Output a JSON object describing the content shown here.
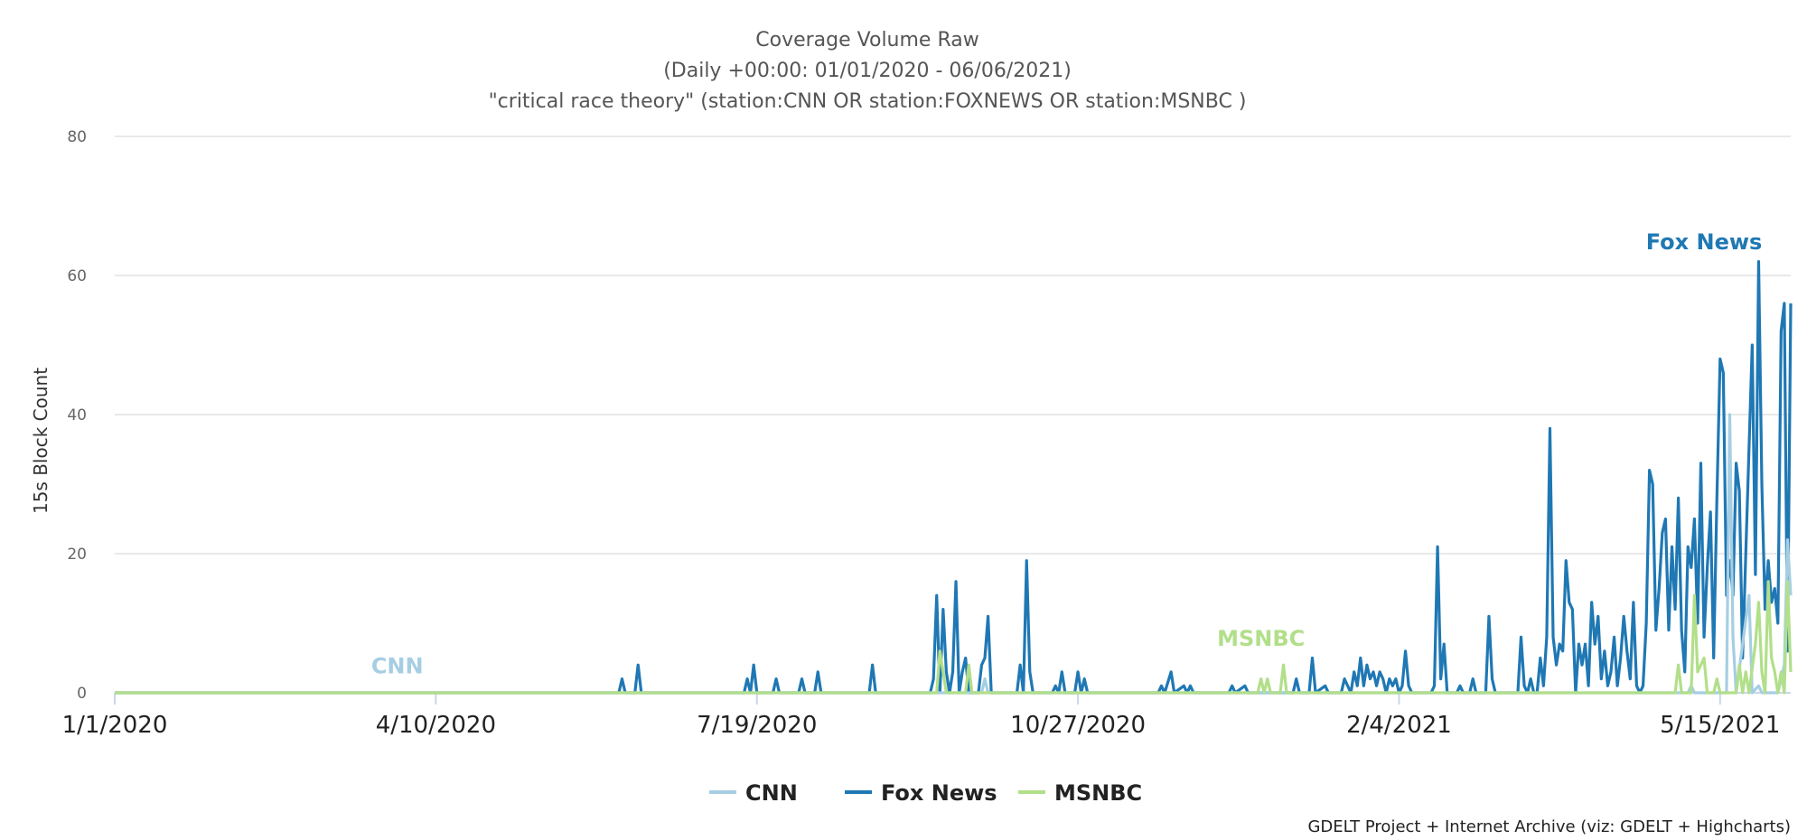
{
  "chart_data": {
    "type": "line",
    "title": [
      "Coverage Volume Raw",
      "(Daily +00:00: 01/01/2020 - 06/06/2021)",
      "\"critical race theory\" (station:CNN OR station:FOXNEWS OR station:MSNBC )"
    ],
    "ylabel": "15s Block Count",
    "ylim": [
      0,
      80
    ],
    "yticks": [
      0,
      20,
      40,
      60,
      80
    ],
    "xlim": [
      "2020-01-01",
      "2021-06-06"
    ],
    "xticks": [
      "1/1/2020",
      "4/10/2020",
      "7/19/2020",
      "10/27/2020",
      "2/4/2021",
      "5/15/2021"
    ],
    "grid": true,
    "legend_position": "bottom-center",
    "credit": "GDELT Project + Internet Archive (viz: GDELT + Highcharts)",
    "series": [
      {
        "name": "CNN",
        "color": "#a6cee3",
        "label_date": "2020-03-29",
        "label_value": 2,
        "points": [
          [
            "2020-01-01",
            0
          ],
          [
            "2020-09-27",
            0
          ],
          [
            "2020-09-28",
            2
          ],
          [
            "2020-09-29",
            0
          ],
          [
            "2021-05-05",
            0
          ],
          [
            "2021-05-06",
            1
          ],
          [
            "2021-05-07",
            0
          ],
          [
            "2021-05-17",
            0
          ],
          [
            "2021-05-18",
            40
          ],
          [
            "2021-05-19",
            8
          ],
          [
            "2021-05-20",
            0
          ],
          [
            "2021-05-24",
            14
          ],
          [
            "2021-05-25",
            0
          ],
          [
            "2021-05-27",
            1
          ],
          [
            "2021-05-28",
            0
          ],
          [
            "2021-06-02",
            0
          ],
          [
            "2021-06-04",
            4
          ],
          [
            "2021-06-05",
            22
          ],
          [
            "2021-06-06",
            14
          ]
        ]
      },
      {
        "name": "Fox News",
        "color": "#1f78b4",
        "label_date": "2021-05-10",
        "label_value": 63,
        "points": [
          [
            "2020-01-01",
            0
          ],
          [
            "2020-06-06",
            0
          ],
          [
            "2020-06-07",
            2
          ],
          [
            "2020-06-08",
            0
          ],
          [
            "2020-06-11",
            0
          ],
          [
            "2020-06-12",
            4
          ],
          [
            "2020-06-13",
            0
          ],
          [
            "2020-07-15",
            0
          ],
          [
            "2020-07-16",
            2
          ],
          [
            "2020-07-17",
            0
          ],
          [
            "2020-07-18",
            4
          ],
          [
            "2020-07-19",
            0
          ],
          [
            "2020-07-24",
            0
          ],
          [
            "2020-07-25",
            2
          ],
          [
            "2020-07-26",
            0
          ],
          [
            "2020-08-01",
            0
          ],
          [
            "2020-08-02",
            2
          ],
          [
            "2020-08-03",
            0
          ],
          [
            "2020-08-06",
            0
          ],
          [
            "2020-08-07",
            3
          ],
          [
            "2020-08-08",
            0
          ],
          [
            "2020-08-23",
            0
          ],
          [
            "2020-08-24",
            4
          ],
          [
            "2020-08-25",
            0
          ],
          [
            "2020-09-11",
            0
          ],
          [
            "2020-09-12",
            2
          ],
          [
            "2020-09-13",
            14
          ],
          [
            "2020-09-14",
            0
          ],
          [
            "2020-09-15",
            12
          ],
          [
            "2020-09-16",
            3
          ],
          [
            "2020-09-17",
            0
          ],
          [
            "2020-09-18",
            3
          ],
          [
            "2020-09-19",
            16
          ],
          [
            "2020-09-20",
            0
          ],
          [
            "2020-09-21",
            3
          ],
          [
            "2020-09-22",
            5
          ],
          [
            "2020-09-23",
            0
          ],
          [
            "2020-09-26",
            0
          ],
          [
            "2020-09-27",
            4
          ],
          [
            "2020-09-28",
            5
          ],
          [
            "2020-09-29",
            11
          ],
          [
            "2020-09-30",
            0
          ],
          [
            "2020-10-08",
            0
          ],
          [
            "2020-10-09",
            4
          ],
          [
            "2020-10-10",
            0
          ],
          [
            "2020-10-11",
            19
          ],
          [
            "2020-10-12",
            3
          ],
          [
            "2020-10-13",
            0
          ],
          [
            "2020-10-19",
            0
          ],
          [
            "2020-10-20",
            1
          ],
          [
            "2020-10-21",
            0
          ],
          [
            "2020-10-22",
            3
          ],
          [
            "2020-10-23",
            0
          ],
          [
            "2020-10-26",
            0
          ],
          [
            "2020-10-27",
            3
          ],
          [
            "2020-10-28",
            0
          ],
          [
            "2020-10-29",
            2
          ],
          [
            "2020-10-30",
            0
          ],
          [
            "2020-11-21",
            0
          ],
          [
            "2020-11-22",
            1
          ],
          [
            "2020-11-23",
            0
          ],
          [
            "2020-11-25",
            3
          ],
          [
            "2020-11-26",
            0
          ],
          [
            "2020-11-29",
            1
          ],
          [
            "2020-11-30",
            0
          ],
          [
            "2020-12-01",
            1
          ],
          [
            "2020-12-02",
            0
          ],
          [
            "2020-12-13",
            0
          ],
          [
            "2020-12-14",
            1
          ],
          [
            "2020-12-15",
            0
          ],
          [
            "2020-12-18",
            1
          ],
          [
            "2020-12-19",
            0
          ],
          [
            "2021-01-02",
            0
          ],
          [
            "2021-01-03",
            2
          ],
          [
            "2021-01-04",
            0
          ],
          [
            "2021-01-07",
            0
          ],
          [
            "2021-01-08",
            5
          ],
          [
            "2021-01-09",
            0
          ],
          [
            "2021-01-12",
            1
          ],
          [
            "2021-01-13",
            0
          ],
          [
            "2021-01-17",
            0
          ],
          [
            "2021-01-18",
            2
          ],
          [
            "2021-01-19",
            1
          ],
          [
            "2021-01-20",
            0
          ],
          [
            "2021-01-21",
            3
          ],
          [
            "2021-01-22",
            1
          ],
          [
            "2021-01-23",
            5
          ],
          [
            "2021-01-24",
            1
          ],
          [
            "2021-01-25",
            4
          ],
          [
            "2021-01-26",
            2
          ],
          [
            "2021-01-27",
            3
          ],
          [
            "2021-01-28",
            1
          ],
          [
            "2021-01-29",
            3
          ],
          [
            "2021-01-30",
            2
          ],
          [
            "2021-01-31",
            0
          ],
          [
            "2021-02-01",
            2
          ],
          [
            "2021-02-02",
            1
          ],
          [
            "2021-02-03",
            2
          ],
          [
            "2021-02-04",
            0
          ],
          [
            "2021-02-05",
            1
          ],
          [
            "2021-02-06",
            6
          ],
          [
            "2021-02-07",
            1
          ],
          [
            "2021-02-08",
            0
          ],
          [
            "2021-02-14",
            0
          ],
          [
            "2021-02-15",
            1
          ],
          [
            "2021-02-16",
            21
          ],
          [
            "2021-02-17",
            2
          ],
          [
            "2021-02-18",
            7
          ],
          [
            "2021-02-19",
            0
          ],
          [
            "2021-02-22",
            0
          ],
          [
            "2021-02-23",
            1
          ],
          [
            "2021-02-24",
            0
          ],
          [
            "2021-02-26",
            0
          ],
          [
            "2021-02-27",
            2
          ],
          [
            "2021-02-28",
            0
          ],
          [
            "2021-03-03",
            0
          ],
          [
            "2021-03-04",
            11
          ],
          [
            "2021-03-05",
            2
          ],
          [
            "2021-03-06",
            0
          ],
          [
            "2021-03-13",
            0
          ],
          [
            "2021-03-14",
            8
          ],
          [
            "2021-03-15",
            1
          ],
          [
            "2021-03-16",
            0
          ],
          [
            "2021-03-17",
            2
          ],
          [
            "2021-03-18",
            0
          ],
          [
            "2021-03-19",
            0
          ],
          [
            "2021-03-20",
            5
          ],
          [
            "2021-03-21",
            1
          ],
          [
            "2021-03-22",
            8
          ],
          [
            "2021-03-23",
            38
          ],
          [
            "2021-03-24",
            8
          ],
          [
            "2021-03-25",
            4
          ],
          [
            "2021-03-26",
            7
          ],
          [
            "2021-03-27",
            6
          ],
          [
            "2021-03-28",
            19
          ],
          [
            "2021-03-29",
            13
          ],
          [
            "2021-03-30",
            12
          ],
          [
            "2021-03-31",
            0
          ],
          [
            "2021-04-01",
            7
          ],
          [
            "2021-04-02",
            4
          ],
          [
            "2021-04-03",
            7
          ],
          [
            "2021-04-04",
            1
          ],
          [
            "2021-04-05",
            13
          ],
          [
            "2021-04-06",
            7
          ],
          [
            "2021-04-07",
            11
          ],
          [
            "2021-04-08",
            2
          ],
          [
            "2021-04-09",
            6
          ],
          [
            "2021-04-10",
            1
          ],
          [
            "2021-04-11",
            3
          ],
          [
            "2021-04-12",
            8
          ],
          [
            "2021-04-13",
            1
          ],
          [
            "2021-04-14",
            5
          ],
          [
            "2021-04-15",
            11
          ],
          [
            "2021-04-16",
            6
          ],
          [
            "2021-04-17",
            2
          ],
          [
            "2021-04-18",
            13
          ],
          [
            "2021-04-19",
            1
          ],
          [
            "2021-04-20",
            0
          ],
          [
            "2021-04-21",
            1
          ],
          [
            "2021-04-22",
            10
          ],
          [
            "2021-04-23",
            32
          ],
          [
            "2021-04-24",
            30
          ],
          [
            "2021-04-25",
            9
          ],
          [
            "2021-04-26",
            15
          ],
          [
            "2021-04-27",
            23
          ],
          [
            "2021-04-28",
            25
          ],
          [
            "2021-04-29",
            9
          ],
          [
            "2021-04-30",
            21
          ],
          [
            "2021-05-01",
            12
          ],
          [
            "2021-05-02",
            28
          ],
          [
            "2021-05-03",
            9
          ],
          [
            "2021-05-04",
            3
          ],
          [
            "2021-05-05",
            21
          ],
          [
            "2021-05-06",
            18
          ],
          [
            "2021-05-07",
            25
          ],
          [
            "2021-05-08",
            10
          ],
          [
            "2021-05-09",
            33
          ],
          [
            "2021-05-10",
            8
          ],
          [
            "2021-05-11",
            18
          ],
          [
            "2021-05-12",
            26
          ],
          [
            "2021-05-13",
            5
          ],
          [
            "2021-05-14",
            28
          ],
          [
            "2021-05-15",
            48
          ],
          [
            "2021-05-16",
            46
          ],
          [
            "2021-05-17",
            14
          ],
          [
            "2021-05-18",
            19
          ],
          [
            "2021-05-19",
            14
          ],
          [
            "2021-05-20",
            33
          ],
          [
            "2021-05-21",
            29
          ],
          [
            "2021-05-22",
            5
          ],
          [
            "2021-05-23",
            20
          ],
          [
            "2021-05-24",
            35
          ],
          [
            "2021-05-25",
            50
          ],
          [
            "2021-05-26",
            17
          ],
          [
            "2021-05-27",
            62
          ],
          [
            "2021-05-28",
            30
          ],
          [
            "2021-05-29",
            12
          ],
          [
            "2021-05-30",
            19
          ],
          [
            "2021-05-31",
            13
          ],
          [
            "2021-06-01",
            15
          ],
          [
            "2021-06-02",
            10
          ],
          [
            "2021-06-03",
            52
          ],
          [
            "2021-06-04",
            56
          ],
          [
            "2021-06-05",
            6
          ],
          [
            "2021-06-06",
            56
          ]
        ]
      },
      {
        "name": "MSNBC",
        "color": "#b2df8a",
        "label_date": "2020-12-23",
        "label_value": 6,
        "points": [
          [
            "2020-01-01",
            0
          ],
          [
            "2020-09-13",
            0
          ],
          [
            "2020-09-14",
            6
          ],
          [
            "2020-09-15",
            3
          ],
          [
            "2020-09-16",
            0
          ],
          [
            "2020-09-22",
            0
          ],
          [
            "2020-09-23",
            4
          ],
          [
            "2020-09-24",
            0
          ],
          [
            "2020-12-22",
            0
          ],
          [
            "2020-12-23",
            2
          ],
          [
            "2020-12-24",
            0
          ],
          [
            "2020-12-25",
            2
          ],
          [
            "2020-12-26",
            0
          ],
          [
            "2020-12-29",
            0
          ],
          [
            "2020-12-30",
            4
          ],
          [
            "2020-12-31",
            0
          ],
          [
            "2021-05-01",
            0
          ],
          [
            "2021-05-02",
            4
          ],
          [
            "2021-05-03",
            0
          ],
          [
            "2021-05-06",
            0
          ],
          [
            "2021-05-07",
            14
          ],
          [
            "2021-05-08",
            3
          ],
          [
            "2021-05-09",
            4
          ],
          [
            "2021-05-10",
            5
          ],
          [
            "2021-05-11",
            0
          ],
          [
            "2021-05-13",
            0
          ],
          [
            "2021-05-14",
            2
          ],
          [
            "2021-05-15",
            0
          ],
          [
            "2021-05-20",
            0
          ],
          [
            "2021-05-21",
            4
          ],
          [
            "2021-05-22",
            0
          ],
          [
            "2021-05-23",
            3
          ],
          [
            "2021-05-24",
            0
          ],
          [
            "2021-05-26",
            7
          ],
          [
            "2021-05-27",
            13
          ],
          [
            "2021-05-28",
            3
          ],
          [
            "2021-05-29",
            0
          ],
          [
            "2021-05-30",
            16
          ],
          [
            "2021-05-31",
            5
          ],
          [
            "2021-06-01",
            3
          ],
          [
            "2021-06-02",
            0
          ],
          [
            "2021-06-03",
            3
          ],
          [
            "2021-06-04",
            0
          ],
          [
            "2021-06-05",
            16
          ],
          [
            "2021-06-06",
            3
          ]
        ]
      }
    ]
  }
}
